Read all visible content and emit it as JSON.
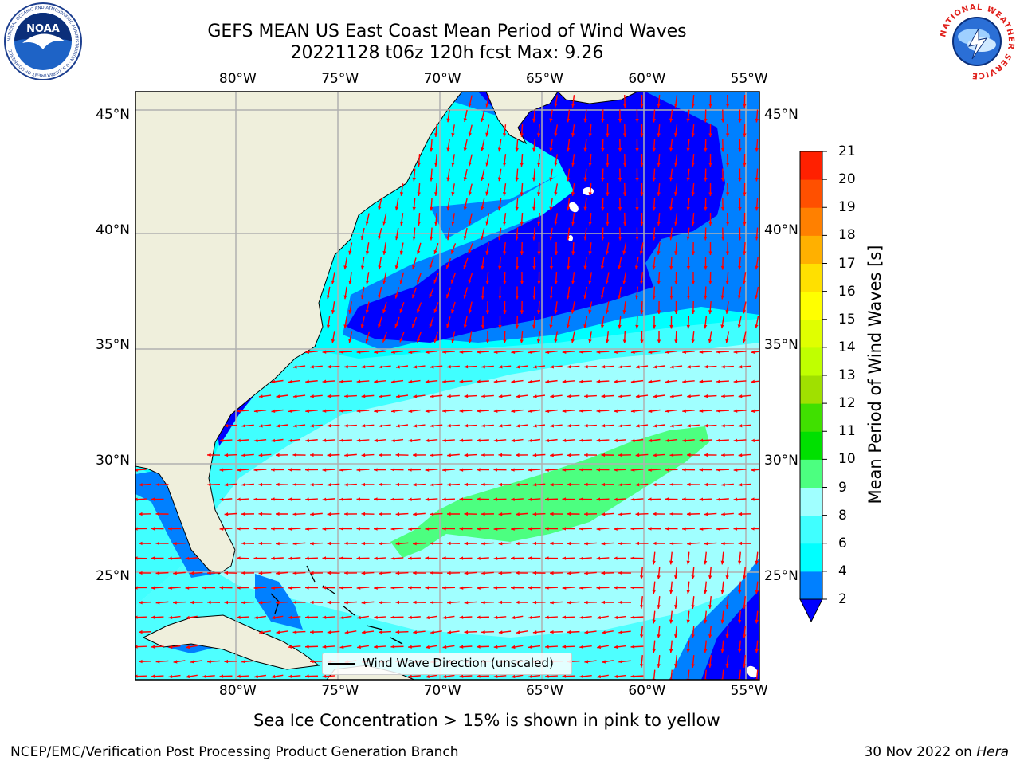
{
  "header": {
    "title_line1": "GEFS MEAN US East Coast Mean Period of Wind Waves",
    "title_line2": "20221128 t06z 120h fcst   Max: 9.26"
  },
  "logos": {
    "left": {
      "icon": "noaa-logo-icon",
      "text": "NATIONAL OCEANIC AND ATMOSPHERIC ADMINISTRATION · U.S. DEPARTMENT OF COMMERCE",
      "abbr": "NOAA"
    },
    "right": {
      "icon": "nws-logo-icon",
      "text": "NATIONAL WEATHER SERVICE"
    }
  },
  "map": {
    "projection": "plate-carree",
    "lon_range": [
      -85,
      -54.5
    ],
    "lat_range": [
      20.5,
      46
    ],
    "lon_ticks": [
      -80,
      -75,
      -70,
      -65,
      -60,
      -55
    ],
    "lat_ticks": [
      25,
      30,
      35,
      40,
      45
    ],
    "lon_tick_labels": [
      "80°W",
      "75°W",
      "70°W",
      "65°W",
      "60°W",
      "55°W"
    ],
    "lat_tick_labels": [
      "25°N",
      "30°N",
      "35°N",
      "40°N",
      "45°N"
    ],
    "grid": true,
    "land_color": "#efefdc",
    "vector_color": "#ff0000",
    "legend": {
      "label": "Wind Wave Direction (unscaled)",
      "placement": "bottom-center"
    }
  },
  "colorbar": {
    "label": "Mean Period of Wind Waves [s]",
    "ticks": [
      2,
      4,
      6,
      8,
      9,
      10,
      11,
      12,
      13,
      14,
      15,
      16,
      17,
      18,
      19,
      20,
      21
    ],
    "colors": [
      "#0000ff",
      "#0080ff",
      "#00ffff",
      "#40ffff",
      "#a0ffff",
      "#4cff80",
      "#00e000",
      "#40e000",
      "#a0e000",
      "#c0ff00",
      "#e0ff00",
      "#ffff00",
      "#ffe000",
      "#ffb000",
      "#ff8000",
      "#ff5000",
      "#ff2000",
      "#ff0000"
    ],
    "extend": "min"
  },
  "chart_data": {
    "type": "heatmap",
    "variable": "Mean Period of Wind Waves",
    "unit": "s",
    "max": 9.26,
    "regions": [
      {
        "band": "2-4",
        "color": "#0000ff",
        "area": "western North Atlantic 36-46°N, 69-56°W"
      },
      {
        "band": "2-4",
        "color": "#0000ff",
        "area": "southeast corner 20-24°N, 58-55°W"
      },
      {
        "band": "4-6",
        "color": "#0080ff",
        "area": "margins of the 2-4 s zones and near-coastal strips"
      },
      {
        "band": "6-8",
        "color": "#00ffff",
        "area": "US East Coast shelf and Gulf of Maine"
      },
      {
        "band": "8-9",
        "color": "#a0ffff",
        "area": "subtropical Atlantic 20-36°N"
      },
      {
        "band": "9-10",
        "color": "#4cff80",
        "area": "elongated patch 26-32°N, 72-57°W"
      }
    ]
  },
  "footer": {
    "note": "Sea Ice Concentration > 15% is shown in pink to yellow",
    "credit": "NCEP/EMC/Verification Post Processing Product Generation Branch",
    "date_prefix": "30 Nov 2022 on ",
    "machine": "Hera"
  }
}
